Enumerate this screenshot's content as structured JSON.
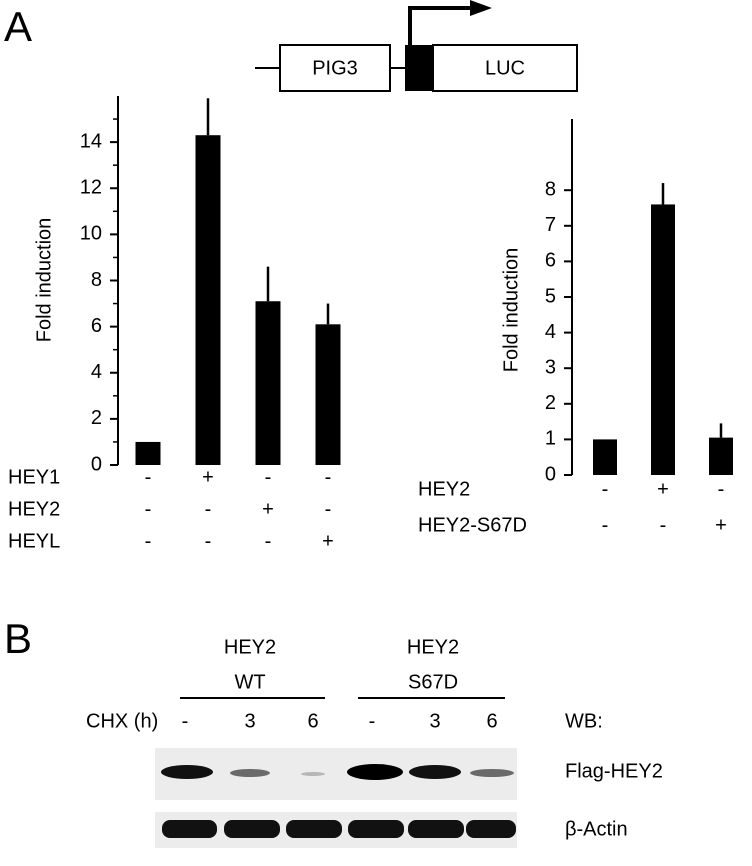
{
  "panel_labels": [
    "A",
    "B"
  ],
  "construct": {
    "promoter": "PIG3",
    "reporter": "LUC"
  },
  "chart_data": [
    {
      "type": "bar",
      "y_label": "Fold induction",
      "color": "#000000",
      "values": [
        1,
        14.3,
        7.1,
        6.1
      ],
      "errors": [
        null,
        1.6,
        1.5,
        0.9
      ],
      "ylim": [
        0,
        16
      ],
      "yticks": [
        0,
        2,
        4,
        6,
        8,
        10,
        12,
        14
      ],
      "minor_yticks": [
        1,
        3,
        5,
        7,
        9,
        11,
        13,
        15
      ],
      "conditions": [
        {
          "name": "HEY1",
          "signs": [
            "-",
            "+",
            "-",
            "-"
          ]
        },
        {
          "name": "HEY2",
          "signs": [
            "-",
            "-",
            "+",
            "-"
          ]
        },
        {
          "name": "HEYL",
          "signs": [
            "-",
            "-",
            "-",
            "+"
          ]
        }
      ]
    },
    {
      "type": "bar",
      "y_label": "Fold induction",
      "color": "#000000",
      "values": [
        1,
        7.6,
        1.05
      ],
      "errors": [
        null,
        0.6,
        0.4
      ],
      "ylim": [
        0,
        10
      ],
      "yticks": [
        0,
        1,
        2,
        3,
        4,
        5,
        6,
        7,
        8
      ],
      "conditions": [
        {
          "name": "HEY2",
          "signs": [
            "-",
            "+",
            "-"
          ]
        },
        {
          "name": "HEY2-S67D",
          "signs": [
            "-",
            "-",
            "+"
          ]
        }
      ]
    }
  ],
  "blot": {
    "groups": [
      {
        "lines": [
          "HEY2",
          "WT"
        ]
      },
      {
        "lines": [
          "HEY2",
          "S67D"
        ]
      }
    ],
    "treatment_label": "CHX (h)",
    "lanes": [
      "-",
      "3",
      "6",
      "-",
      "3",
      "6"
    ],
    "wb_label": "WB:",
    "rows": [
      "Flag-HEY2",
      "β-Actin"
    ]
  }
}
